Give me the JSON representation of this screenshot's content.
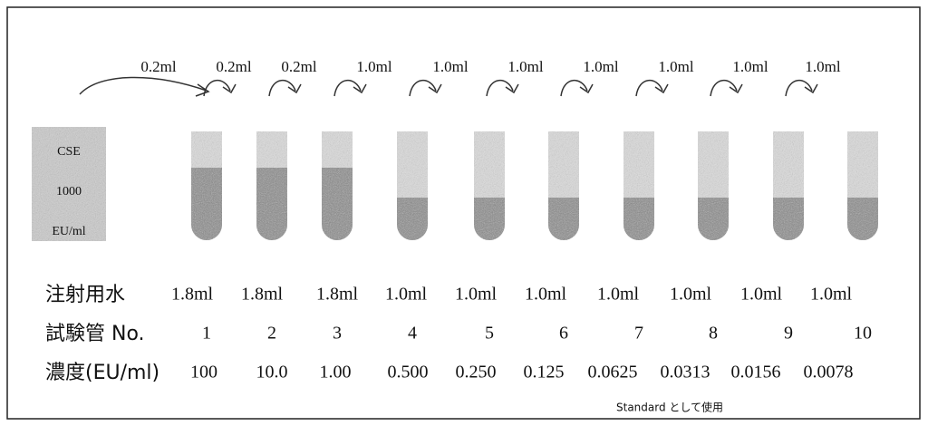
{
  "transfers": [
    "0.2ml",
    "0.2ml",
    "0.2ml",
    "1.0ml",
    "1.0ml",
    "1.0ml",
    "1.0ml",
    "1.0ml",
    "1.0ml",
    "1.0ml"
  ],
  "source": {
    "lines": [
      "CSE",
      "1000",
      "EU/ml"
    ]
  },
  "rows": {
    "water": {
      "label": "注射用水",
      "values": [
        "1.8ml",
        "1.8ml",
        "1.8ml",
        "1.0ml",
        "1.0ml",
        "1.0ml",
        "1.0ml",
        "1.0ml",
        "1.0ml",
        "1.0ml"
      ]
    },
    "tube": {
      "label": "試験管 No.",
      "values": [
        "1",
        "2",
        "3",
        "4",
        "5",
        "6",
        "7",
        "8",
        "9",
        "10"
      ]
    },
    "concentration": {
      "label": "濃度(EU/ml)",
      "values": [
        "100",
        "10.0",
        "1.00",
        "0.500",
        "0.250",
        "0.125",
        "0.0625",
        "0.0313",
        "0.0156",
        "0.0078"
      ]
    }
  },
  "note": "Standard として使用"
}
